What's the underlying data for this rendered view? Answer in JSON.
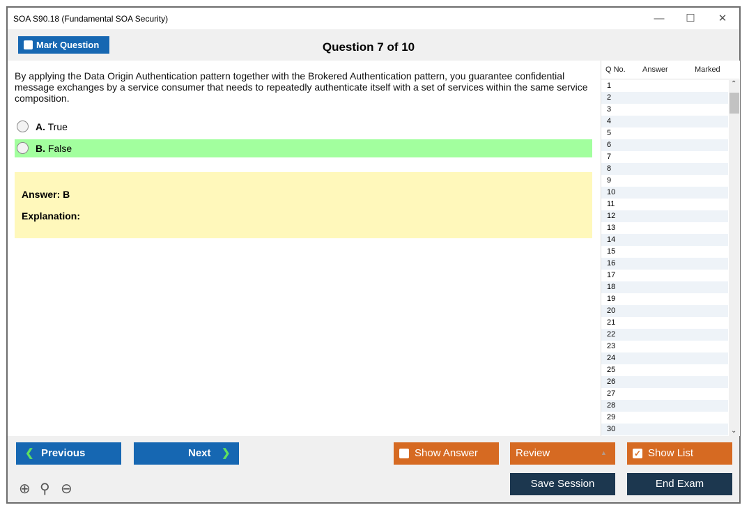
{
  "window": {
    "title": "SOA S90.18 (Fundamental SOA Security)",
    "minimize": "—",
    "maximize": "☐",
    "close": "✕"
  },
  "toolbar": {
    "mark_label": "Mark Question",
    "question_title": "Question 7 of 10"
  },
  "question": {
    "text": "By applying the Data Origin Authentication pattern together with the Brokered Authentication pattern, you guarantee confidential message exchanges by a service consumer that needs to repeatedly authenticate itself with a set of services within the same service composition.",
    "options": [
      {
        "letter": "A.",
        "text": "True",
        "highlight": false
      },
      {
        "letter": "B.",
        "text": "False",
        "highlight": true
      }
    ],
    "answer": "Answer: B",
    "explanation": "Explanation:"
  },
  "panel": {
    "headers": [
      "Q No.",
      "Answer",
      "Marked"
    ],
    "rows": [
      "1",
      "2",
      "3",
      "4",
      "5",
      "6",
      "7",
      "8",
      "9",
      "10",
      "11",
      "12",
      "13",
      "14",
      "15",
      "16",
      "17",
      "18",
      "19",
      "20",
      "21",
      "22",
      "23",
      "24",
      "25",
      "26",
      "27",
      "28",
      "29",
      "30"
    ]
  },
  "buttons": {
    "previous": "Previous",
    "next": "Next",
    "show_answer": "Show Answer",
    "review": "Review",
    "show_list": "Show List",
    "save_session": "Save Session",
    "end_exam": "End Exam"
  },
  "colors": {
    "blue": "#1667b2",
    "orange": "#d66a22",
    "navy": "#1c374f",
    "correct": "#a2ff9e",
    "answer_bg": "#fff8bb"
  }
}
